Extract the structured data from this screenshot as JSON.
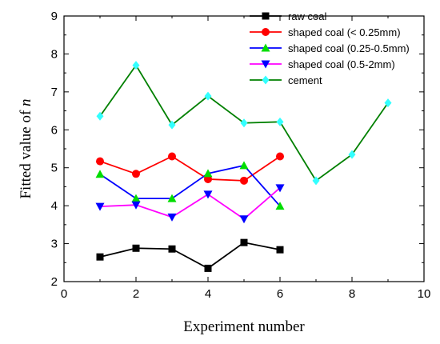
{
  "chart_data": {
    "type": "line",
    "xlabel": "Experiment number",
    "ylabel_main": "Fitted value of ",
    "ylabel_italic": "n",
    "xlim": [
      0,
      10
    ],
    "ylim": [
      2,
      9
    ],
    "xticks": [
      0,
      2,
      4,
      6,
      8,
      10
    ],
    "yticks": [
      2,
      3,
      4,
      5,
      6,
      7,
      8,
      9
    ],
    "grid": false,
    "legend_position": "top-right",
    "series": [
      {
        "name": "raw coal",
        "color": "#000000",
        "marker": "square",
        "x": [
          1,
          2,
          3,
          4,
          5,
          6
        ],
        "y": [
          2.65,
          2.88,
          2.86,
          2.35,
          3.03,
          2.84
        ]
      },
      {
        "name": "shaped coal (< 0.25mm)",
        "color": "#ff0000",
        "marker": "circle",
        "x": [
          1,
          2,
          3,
          4,
          5,
          6
        ],
        "y": [
          5.17,
          4.84,
          5.3,
          4.7,
          4.66,
          5.3
        ]
      },
      {
        "name": "shaped coal (0.25-0.5mm)",
        "color": "#0000ff",
        "marker": "triangle-up",
        "x": [
          1,
          2,
          3,
          4,
          5,
          6
        ],
        "y": [
          4.83,
          4.19,
          4.19,
          4.85,
          5.06,
          3.99
        ]
      },
      {
        "name": "shaped coal (0.5-2mm)",
        "color": "#ff00ff",
        "marker": "triangle-down",
        "x": [
          1,
          2,
          3,
          4,
          5,
          6
        ],
        "y": [
          3.98,
          4.02,
          3.7,
          4.3,
          3.65,
          4.47
        ]
      },
      {
        "name": "cement",
        "color": "#008000",
        "marker": "diamond",
        "x": [
          1,
          2,
          3,
          4,
          5,
          6,
          7,
          8,
          9
        ],
        "y": [
          6.36,
          7.7,
          6.13,
          6.89,
          6.18,
          6.21,
          4.66,
          5.35,
          6.71
        ]
      }
    ],
    "marker_colors": {
      "raw coal": "#000000",
      "shaped coal (< 0.25mm)": "#ff0000",
      "shaped coal (0.25-0.5mm) line": "#0000ff",
      "shaped coal (0.25-0.5mm) marker": "#00dd00",
      "shaped coal (0.5-2mm) line": "#ff00ff",
      "shaped coal (0.5-2mm) marker": "#0000ff",
      "cement line": "#008000",
      "cement marker": "#33ffff"
    }
  }
}
